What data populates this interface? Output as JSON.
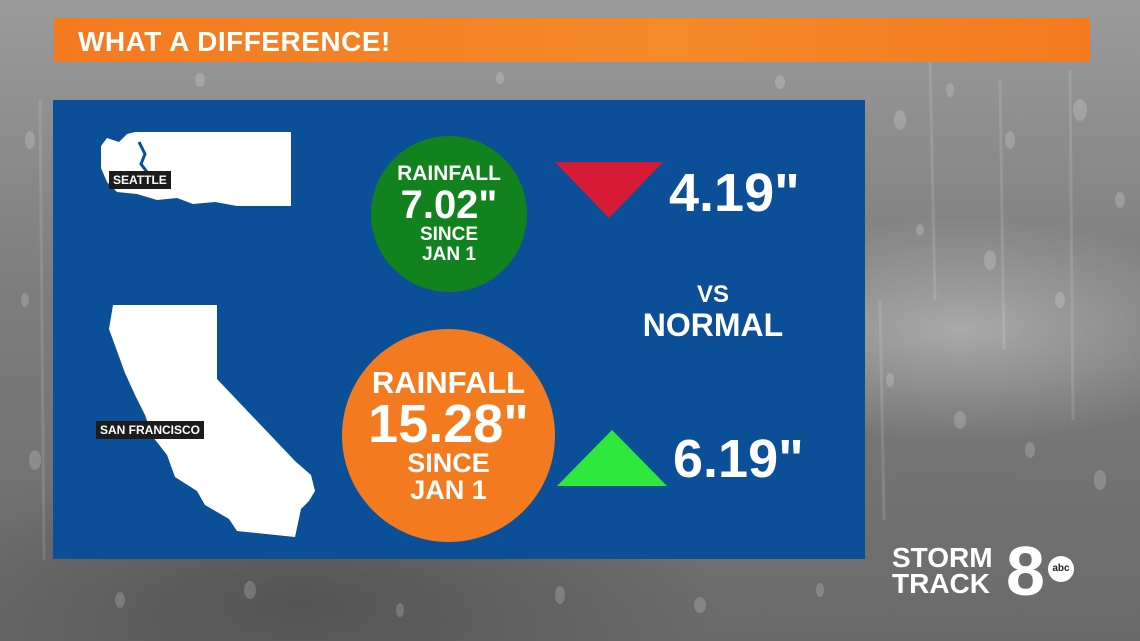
{
  "header": {
    "title": "WHAT A DIFFERENCE!"
  },
  "seattle": {
    "city": "SEATTLE",
    "rain_label": "RAINFALL",
    "rain_value": "7.02\"",
    "since_line1": "SINCE",
    "since_line2": "JAN 1",
    "delta": "4.19\"",
    "direction": "down",
    "circle_color": "#12821f",
    "arrow_color": "#d71b36"
  },
  "san_francisco": {
    "city": "SAN FRANCISCO",
    "rain_label": "RAINFALL",
    "rain_value": "15.28\"",
    "since_line1": "SINCE",
    "since_line2": "JAN 1",
    "delta": "6.19\"",
    "direction": "up",
    "circle_color": "#f47a20",
    "arrow_color": "#2ee83e"
  },
  "comparison": {
    "line1": "VS",
    "line2": "NORMAL"
  },
  "logo": {
    "line1": "STORM",
    "line2": "TRACK",
    "number": "8",
    "network": "abc"
  }
}
